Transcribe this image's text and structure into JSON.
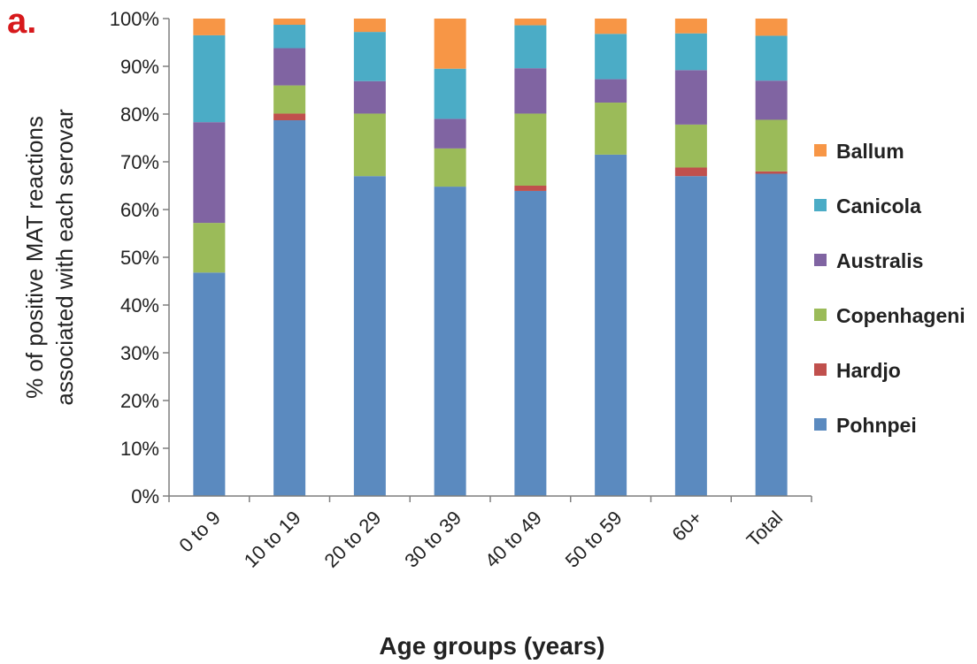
{
  "panel_label": "a.",
  "chart_data": {
    "type": "bar",
    "stacked": true,
    "xlabel": "Age groups (years)",
    "ylabel_lines": [
      "% of positive MAT reactions",
      "associated with each serovar"
    ],
    "ylim": [
      0,
      100
    ],
    "y_ticks": [
      "0%",
      "10%",
      "20%",
      "30%",
      "40%",
      "50%",
      "60%",
      "70%",
      "80%",
      "90%",
      "100%"
    ],
    "legend_position": "right",
    "categories": [
      "0 to 9",
      "10 to 19",
      "20 to 29",
      "30 to 39",
      "40 to 49",
      "50 to 59",
      "60+",
      "Total"
    ],
    "series": [
      {
        "name": "Pohnpei",
        "color": "#5b8abf",
        "values": [
          46.8,
          78.7,
          67.0,
          64.8,
          63.9,
          71.5,
          67.0,
          67.5
        ]
      },
      {
        "name": "Hardjo",
        "color": "#c0504d",
        "values": [
          0,
          1.4,
          0,
          0,
          1.1,
          0,
          1.8,
          0.5
        ]
      },
      {
        "name": "Copenhageni",
        "color": "#9bbb59",
        "values": [
          10.4,
          5.9,
          13.1,
          8.0,
          15.1,
          10.9,
          9.0,
          10.8
        ]
      },
      {
        "name": "Australis",
        "color": "#8064a2",
        "values": [
          21.1,
          7.8,
          6.8,
          6.2,
          9.5,
          4.9,
          11.4,
          8.2
        ]
      },
      {
        "name": "Canicola",
        "color": "#4bacc6",
        "values": [
          18.2,
          4.9,
          10.3,
          10.5,
          9.0,
          9.5,
          7.7,
          9.4
        ]
      },
      {
        "name": "Ballum",
        "color": "#f79646",
        "values": [
          3.5,
          1.3,
          2.8,
          10.5,
          1.4,
          3.2,
          3.1,
          3.6
        ]
      }
    ]
  }
}
